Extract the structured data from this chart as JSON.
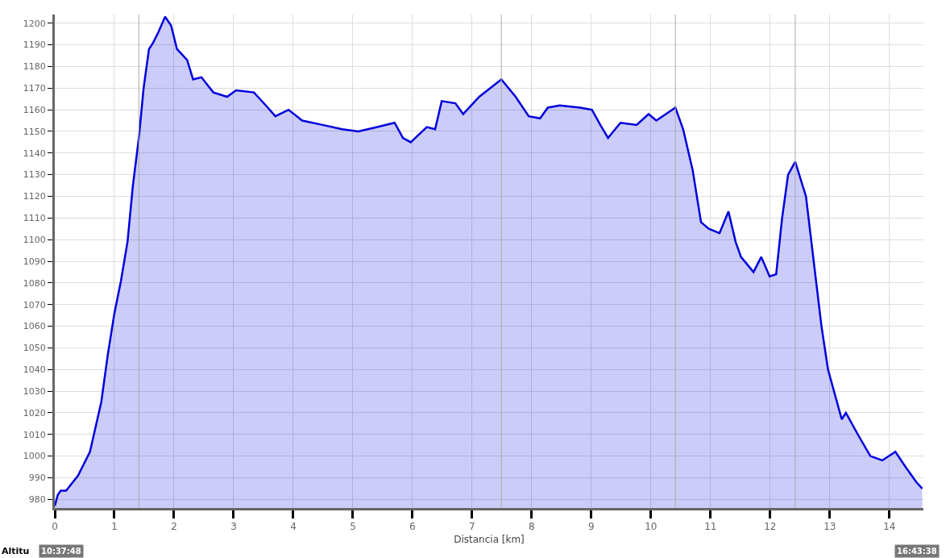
{
  "chart_data": {
    "type": "area",
    "xlabel": "Distancia [km]",
    "x": [
      0,
      0.05,
      0.1,
      0.19,
      0.39,
      0.59,
      0.78,
      0.89,
      1.0,
      1.11,
      1.22,
      1.31,
      1.41,
      1.49,
      1.58,
      1.65,
      1.74,
      1.85,
      1.95,
      2.05,
      2.22,
      2.32,
      2.46,
      2.66,
      2.89,
      3.04,
      3.34,
      3.54,
      3.7,
      3.92,
      4.15,
      4.49,
      4.82,
      5.09,
      5.41,
      5.7,
      5.84,
      5.97,
      6.24,
      6.38,
      6.49,
      6.72,
      6.85,
      7.12,
      7.49,
      7.73,
      7.95,
      8.14,
      8.27,
      8.47,
      8.81,
      9.01,
      9.15,
      9.28,
      9.49,
      9.76,
      9.96,
      10.09,
      10.41,
      10.54,
      10.7,
      10.84,
      10.97,
      11.15,
      11.3,
      11.42,
      11.51,
      11.72,
      11.85,
      11.99,
      12.1,
      12.2,
      12.3,
      12.42,
      12.6,
      12.73,
      12.86,
      12.97,
      13.2,
      13.27,
      13.47,
      13.68,
      13.88,
      14.1,
      14.27,
      14.45,
      14.55
    ],
    "series": [
      {
        "color": "#0000dd",
        "values": [
          977,
          982,
          984,
          984,
          991,
          1002,
          1025,
          1047,
          1066,
          1081,
          1099,
          1125,
          1147,
          1170,
          1188,
          1191,
          1196,
          1203,
          1199,
          1188,
          1183,
          1174,
          1175,
          1168,
          1166,
          1169,
          1168,
          1162,
          1157,
          1160,
          1155,
          1153,
          1151,
          1150,
          1152,
          1154,
          1147,
          1145,
          1152,
          1151,
          1164,
          1163,
          1158,
          1166,
          1174,
          1166,
          1157,
          1156,
          1161,
          1162,
          1161,
          1160,
          1153,
          1147,
          1154,
          1153,
          1158,
          1155,
          1161,
          1151,
          1132,
          1108,
          1105,
          1103,
          1113,
          1099,
          1092,
          1085,
          1092,
          1083,
          1084,
          1110,
          1130,
          1136,
          1120,
          1090,
          1060,
          1040,
          1017,
          1020,
          1010,
          1000,
          998,
          1002,
          995,
          988,
          985
        ]
      }
    ],
    "xlim": [
      0,
      14.57
    ],
    "xticks": [
      0,
      1,
      2,
      3,
      4,
      5,
      6,
      7,
      8,
      9,
      10,
      11,
      12,
      13,
      14
    ],
    "ylim": [
      976,
      1204
    ],
    "yticks": [
      980,
      990,
      1000,
      1010,
      1020,
      1030,
      1040,
      1050,
      1060,
      1070,
      1080,
      1090,
      1100,
      1110,
      1120,
      1130,
      1140,
      1150,
      1160,
      1170,
      1180,
      1190,
      1200
    ],
    "grid": true,
    "ref_lines": [
      {
        "axis": "x",
        "value": 1.41,
        "label": null,
        "color": "#aaaaaa"
      },
      {
        "axis": "x",
        "value": 7.49,
        "label": null,
        "color": "#aaaaaa"
      },
      {
        "axis": "x",
        "value": 10.41,
        "label": null,
        "color": "#aaaaaa"
      },
      {
        "axis": "x",
        "value": 12.42,
        "label": null,
        "color": "#aaaaaa"
      }
    ],
    "annotations": [
      "Altitu",
      "10:37:48",
      "16:43:38"
    ]
  }
}
